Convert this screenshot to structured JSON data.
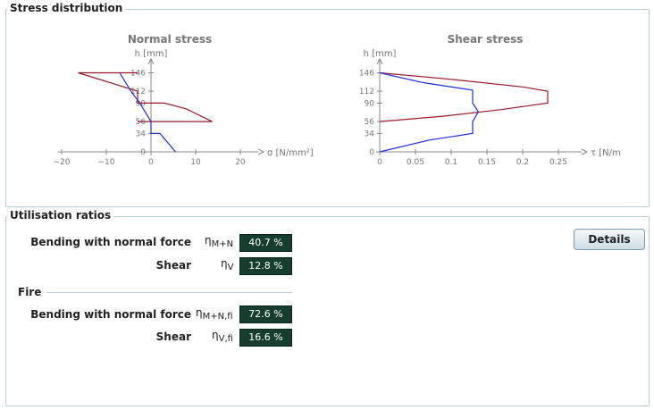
{
  "stress": {
    "title": "Stress distribution",
    "normal": {
      "title": "Normal stress",
      "ylabel": "h [mm]",
      "xlabel": "σ [N/mm²]",
      "yticks": [
        "146",
        "112",
        "90",
        "56",
        "34",
        "0"
      ],
      "xticks": [
        "−20",
        "−10",
        "0",
        "10",
        "20"
      ]
    },
    "shear": {
      "title": "Shear stress",
      "ylabel": "h [mm]",
      "xlabel": "τ [N/mm²]",
      "yticks": [
        "146",
        "112",
        "90",
        "56",
        "34",
        "0"
      ],
      "xticks": [
        "0",
        "0.05",
        "0.1",
        "0.15",
        "0.2",
        "0.25"
      ]
    }
  },
  "chart_data": [
    {
      "type": "line",
      "title": "Normal stress",
      "xlabel": "σ [N/mm²]",
      "ylabel": "h [mm]",
      "xlim": [
        -20,
        22
      ],
      "ylim": [
        0,
        160
      ],
      "series": [
        {
          "color": "#9b1b2a",
          "points": [
            [
              -3,
              146
            ],
            [
              -16.3,
              146
            ],
            [
              -3,
              112
            ],
            [
              -3,
              90
            ],
            [
              3,
              90
            ],
            [
              8,
              79
            ],
            [
              13.7,
              56
            ],
            [
              -3,
              56
            ]
          ]
        },
        {
          "color": "#1f2ee0",
          "points": [
            [
              -7,
              146
            ],
            [
              -4.5,
              112
            ],
            [
              -2.5,
              90
            ],
            [
              0,
              56
            ],
            [
              0,
              34
            ],
            [
              2,
              34
            ],
            [
              5.5,
              0
            ]
          ]
        }
      ]
    },
    {
      "type": "line",
      "title": "Shear stress",
      "xlabel": "τ [N/mm²]",
      "ylabel": "h [mm]",
      "xlim": [
        0,
        0.27
      ],
      "ylim": [
        0,
        160
      ],
      "series": [
        {
          "color": "#9b1b2a",
          "points": [
            [
              0,
              146
            ],
            [
              0.1,
              134
            ],
            [
              0.2,
              120
            ],
            [
              0.235,
              112
            ],
            [
              0.235,
              90
            ],
            [
              0.17,
              78
            ],
            [
              0.09,
              66
            ],
            [
              0,
              56
            ]
          ]
        },
        {
          "color": "#1f2ee0",
          "points": [
            [
              0,
              146
            ],
            [
              0.06,
              128
            ],
            [
              0.13,
              114
            ],
            [
              0.13,
              90
            ],
            [
              0.138,
              74
            ],
            [
              0.13,
              56
            ],
            [
              0.13,
              34
            ],
            [
              0.07,
              22
            ],
            [
              0,
              0
            ]
          ]
        }
      ]
    }
  ],
  "util": {
    "title": "Utilisation ratios",
    "rows": [
      {
        "label": "Bending with normal force",
        "eta": "η",
        "sub": "M+N",
        "value": "40.7 %"
      },
      {
        "label": "Shear",
        "eta": "η",
        "sub": "V",
        "value": "12.8 %"
      }
    ],
    "fire_title": "Fire",
    "fire_rows": [
      {
        "label": "Bending with normal force",
        "eta": "η",
        "sub": "M+N,fi",
        "value": "72.6 %"
      },
      {
        "label": "Shear",
        "eta": "η",
        "sub": "V,fi",
        "value": "16.6 %"
      }
    ],
    "details_label": "Details"
  }
}
